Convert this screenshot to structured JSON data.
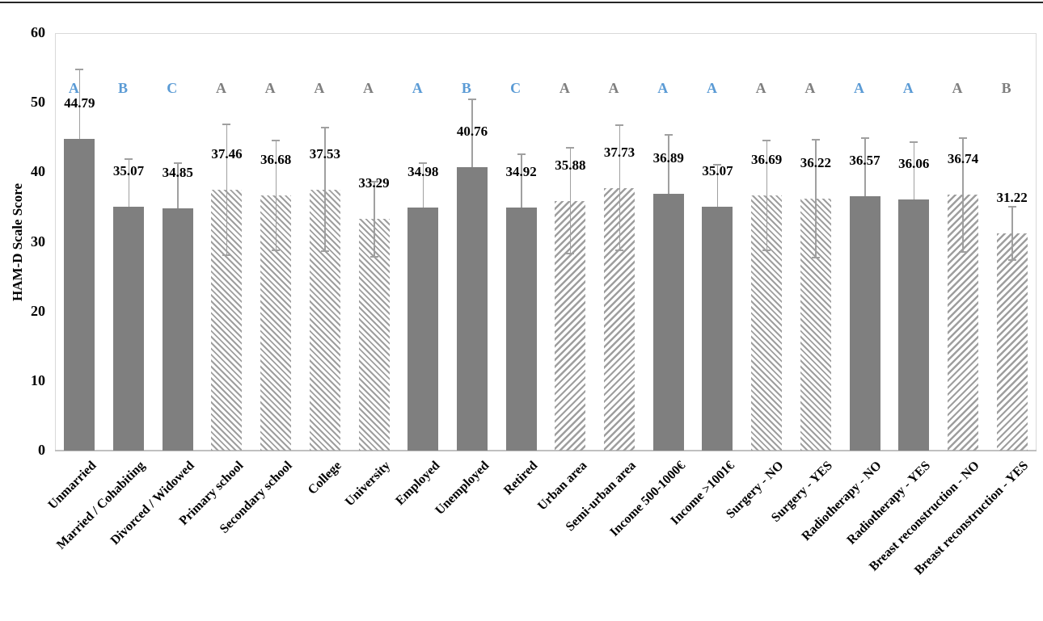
{
  "figure": {
    "kind": "bar chart with error bars and significance letters"
  },
  "colors": {
    "bar_solid": "#7f7f7f",
    "hatch_stroke": "#9e9e9e",
    "error_bar": "#a0a0a0",
    "letter_blue": "#5b9bd5",
    "letter_gray": "#7f7f7f",
    "plot_border": "#d9d9d9",
    "axis_line": "#c0c0c0",
    "top_rule": "#262626",
    "text": "#000000"
  },
  "chart_data": {
    "type": "bar",
    "title": "",
    "xlabel": "",
    "ylabel": "HAM-D Scale Score",
    "ylim": [
      0,
      60
    ],
    "y_ticks": [
      0,
      10,
      20,
      30,
      40,
      50,
      60
    ],
    "grid": false,
    "legend": "none",
    "categories": [
      "Unmarried",
      "Married / Cohabiting",
      "Divorced / Widowed",
      "Primary school",
      "Secondary school",
      "College",
      "University",
      "Employed",
      "Unemployed",
      "Retired",
      "Urban area",
      "Semi-urban area",
      "Income 500-1000€",
      "Income >1001€",
      "Surgery - NO",
      "Surgery - YES",
      "Radiotherapy - NO",
      "Radiotherapy - YES",
      "Breast reconstruction - NO",
      "Breast reconstruction - YES"
    ],
    "values": [
      44.79,
      35.07,
      34.85,
      37.46,
      36.68,
      37.53,
      33.29,
      34.98,
      40.76,
      34.92,
      35.88,
      37.73,
      36.89,
      35.07,
      36.69,
      36.22,
      36.57,
      36.06,
      36.74,
      31.22
    ],
    "error_bars": [
      10.0,
      6.8,
      6.5,
      9.4,
      7.9,
      8.9,
      5.4,
      6.3,
      9.7,
      7.7,
      7.6,
      9.0,
      8.5,
      6.0,
      7.9,
      8.5,
      8.3,
      8.3,
      8.2,
      3.8
    ],
    "bar_styles": [
      "solid",
      "solid",
      "solid",
      "hatch-down",
      "hatch-down",
      "hatch-down",
      "hatch-down",
      "solid",
      "solid",
      "solid",
      "hatch-up",
      "hatch-up",
      "solid",
      "solid",
      "hatch-down",
      "hatch-down",
      "solid",
      "solid",
      "hatch-up",
      "hatch-up"
    ],
    "significance_letters": [
      {
        "label": "A",
        "color": "blue"
      },
      {
        "label": "B",
        "color": "blue"
      },
      {
        "label": "C",
        "color": "blue"
      },
      {
        "label": "A",
        "color": "gray"
      },
      {
        "label": "A",
        "color": "gray"
      },
      {
        "label": "A",
        "color": "gray"
      },
      {
        "label": "A",
        "color": "gray"
      },
      {
        "label": "A",
        "color": "blue"
      },
      {
        "label": "B",
        "color": "blue"
      },
      {
        "label": "C",
        "color": "blue"
      },
      {
        "label": "A",
        "color": "gray"
      },
      {
        "label": "A",
        "color": "gray"
      },
      {
        "label": "A",
        "color": "blue"
      },
      {
        "label": "A",
        "color": "blue"
      },
      {
        "label": "A",
        "color": "gray"
      },
      {
        "label": "A",
        "color": "gray"
      },
      {
        "label": "A",
        "color": "blue"
      },
      {
        "label": "A",
        "color": "blue"
      },
      {
        "label": "A",
        "color": "gray"
      },
      {
        "label": "B",
        "color": "gray"
      }
    ]
  }
}
